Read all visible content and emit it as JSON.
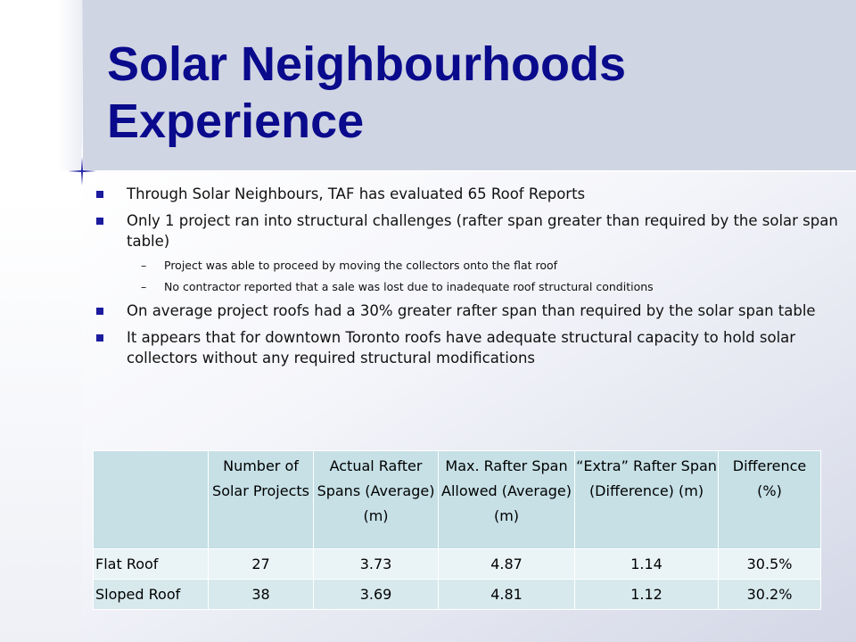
{
  "slide": {
    "title": "Solar Neighbourhoods Experience",
    "bullets": [
      {
        "type": "main",
        "text": "Through Solar Neighbours, TAF has evaluated 65 Roof Reports"
      },
      {
        "type": "main",
        "text": "Only 1 project ran into structural challenges (rafter span greater than required by the solar span table)"
      },
      {
        "type": "sub",
        "dash": "–",
        "text": "Project was able to proceed by moving the collectors onto the flat roof"
      },
      {
        "type": "sub",
        "dash": "–",
        "text": "No contractor reported that a sale was lost due to inadequate roof structural conditions"
      },
      {
        "type": "main",
        "text": "On average project roofs had a 30% greater rafter span than required by the solar span table"
      },
      {
        "type": "main",
        "text": "It appears that for downtown Toronto roofs have adequate structural capacity to hold solar collectors without any required structural modifications"
      }
    ],
    "bullet_color": "#1b1b9e",
    "title_color": "#0a0a8c"
  },
  "table": {
    "headers": [
      "",
      "Number of Solar Projects",
      "Actual Rafter Spans (Average) (m)",
      "Max. Rafter Span Allowed (Average) (m)",
      "“Extra” Rafter Span (Difference) (m)",
      "Difference (%)"
    ],
    "rows": [
      [
        "Flat Roof",
        "27",
        "3.73",
        "4.87",
        "1.14",
        "30.5%"
      ],
      [
        "Sloped Roof",
        "38",
        "3.69",
        "4.81",
        "1.12",
        "30.2%"
      ]
    ]
  }
}
